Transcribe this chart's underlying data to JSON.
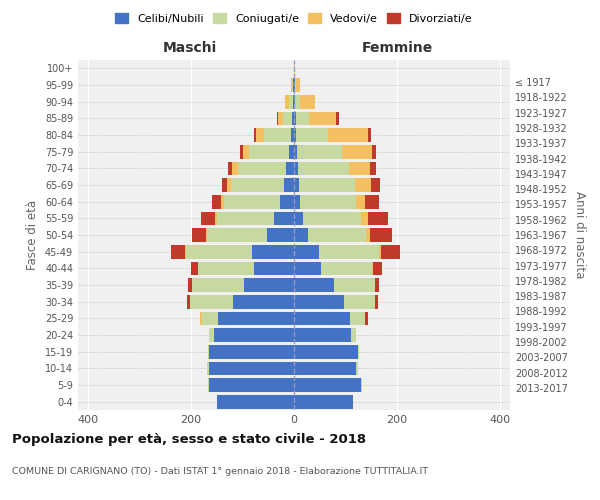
{
  "age_groups": [
    "0-4",
    "5-9",
    "10-14",
    "15-19",
    "20-24",
    "25-29",
    "30-34",
    "35-39",
    "40-44",
    "45-49",
    "50-54",
    "55-59",
    "60-64",
    "65-69",
    "70-74",
    "75-79",
    "80-84",
    "85-89",
    "90-94",
    "95-99",
    "100+"
  ],
  "birth_years": [
    "2013-2017",
    "2008-2012",
    "2003-2007",
    "1998-2002",
    "1993-1997",
    "1988-1992",
    "1983-1987",
    "1978-1982",
    "1973-1977",
    "1968-1972",
    "1963-1967",
    "1958-1962",
    "1953-1957",
    "1948-1952",
    "1943-1947",
    "1938-1942",
    "1933-1937",
    "1928-1932",
    "1923-1927",
    "1918-1922",
    "≤ 1917"
  ],
  "colors": {
    "celibe": "#4472c4",
    "coniugato": "#c5d9a0",
    "vedovo": "#f2c060",
    "divorziato": "#c0392b"
  },
  "maschi": {
    "celibe": [
      150,
      165,
      165,
      165,
      155,
      148,
      118,
      98,
      78,
      82,
      52,
      38,
      28,
      20,
      16,
      10,
      6,
      4,
      1,
      1,
      0
    ],
    "coniugato": [
      0,
      2,
      4,
      2,
      10,
      30,
      85,
      100,
      108,
      128,
      118,
      112,
      108,
      102,
      92,
      78,
      52,
      18,
      8,
      2,
      0
    ],
    "vedovo": [
      0,
      0,
      0,
      0,
      0,
      5,
      0,
      0,
      0,
      2,
      2,
      3,
      5,
      8,
      12,
      12,
      15,
      10,
      8,
      2,
      0
    ],
    "divorziato": [
      0,
      0,
      0,
      0,
      0,
      0,
      5,
      8,
      14,
      28,
      26,
      28,
      18,
      10,
      8,
      5,
      5,
      2,
      0,
      0,
      0
    ]
  },
  "femmine": {
    "nubile": [
      115,
      130,
      120,
      125,
      110,
      108,
      98,
      78,
      52,
      48,
      28,
      18,
      12,
      10,
      8,
      5,
      4,
      4,
      2,
      1,
      0
    ],
    "coniugata": [
      0,
      2,
      4,
      2,
      10,
      30,
      60,
      80,
      100,
      118,
      112,
      112,
      108,
      108,
      98,
      88,
      62,
      26,
      10,
      2,
      0
    ],
    "vedova": [
      0,
      0,
      0,
      0,
      0,
      0,
      0,
      0,
      2,
      4,
      8,
      14,
      18,
      32,
      42,
      58,
      78,
      52,
      28,
      8,
      2
    ],
    "divorziata": [
      0,
      0,
      0,
      0,
      0,
      5,
      5,
      8,
      18,
      36,
      42,
      38,
      28,
      18,
      12,
      8,
      5,
      5,
      0,
      0,
      0
    ]
  },
  "title": "Popolazione per età, sesso e stato civile - 2018",
  "subtitle": "COMUNE DI CARIGNANO (TO) - Dati ISTAT 1° gennaio 2018 - Elaborazione TUTTITALIA.IT",
  "xlabel_left": "Maschi",
  "xlabel_right": "Femmine",
  "ylabel_left": "Fasce di età",
  "ylabel_right": "Anni di nascita",
  "xlim": 420,
  "legend_labels": [
    "Celibi/Nubili",
    "Coniugati/e",
    "Vedovi/e",
    "Divorziati/e"
  ],
  "background_color": "#f0f0f0"
}
